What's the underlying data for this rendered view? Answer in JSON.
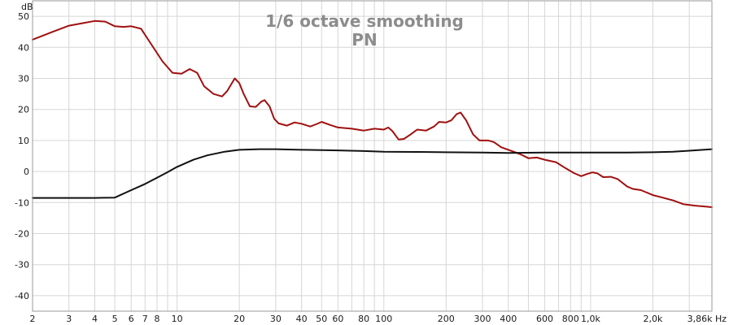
{
  "chart_data": {
    "type": "line",
    "title": "1/6 octave smoothing",
    "subtitle": "PN",
    "ylabel": "dB",
    "x_unit": "Hz",
    "x_scale": "log",
    "xlim": [
      2,
      3860
    ],
    "ylim": [
      -45,
      55
    ],
    "grid": true,
    "y_ticks": [
      {
        "value": 50,
        "label": "50"
      },
      {
        "value": 40,
        "label": "40"
      },
      {
        "value": 30,
        "label": "30"
      },
      {
        "value": 20,
        "label": "20"
      },
      {
        "value": 10,
        "label": "10"
      },
      {
        "value": 0,
        "label": "0"
      },
      {
        "value": -10,
        "label": "-10"
      },
      {
        "value": -20,
        "label": "-20"
      },
      {
        "value": -30,
        "label": "-30"
      },
      {
        "value": -40,
        "label": "-40"
      }
    ],
    "x_ticks": [
      {
        "value": 2,
        "label": "2"
      },
      {
        "value": 3,
        "label": "3"
      },
      {
        "value": 4,
        "label": "4"
      },
      {
        "value": 5,
        "label": "5"
      },
      {
        "value": 6,
        "label": "6"
      },
      {
        "value": 7,
        "label": "7"
      },
      {
        "value": 8,
        "label": "8"
      },
      {
        "value": 10,
        "label": "10"
      },
      {
        "value": 20,
        "label": "20"
      },
      {
        "value": 30,
        "label": "30"
      },
      {
        "value": 40,
        "label": "40"
      },
      {
        "value": 50,
        "label": "50"
      },
      {
        "value": 60,
        "label": "60"
      },
      {
        "value": 80,
        "label": "80"
      },
      {
        "value": 100,
        "label": "100"
      },
      {
        "value": 200,
        "label": "200"
      },
      {
        "value": 300,
        "label": "300"
      },
      {
        "value": 400,
        "label": "400"
      },
      {
        "value": 600,
        "label": "600"
      },
      {
        "value": 800,
        "label": "800"
      },
      {
        "value": 1000,
        "label": "1,0k"
      },
      {
        "value": 2000,
        "label": "2,0k"
      },
      {
        "value": 3860,
        "label": "3,86k Hz"
      }
    ],
    "series": [
      {
        "color": "#a01010",
        "points": [
          [
            2,
            42.5
          ],
          [
            2.5,
            45
          ],
          [
            3,
            47
          ],
          [
            3.5,
            47.8
          ],
          [
            4,
            48.5
          ],
          [
            4.5,
            48.3
          ],
          [
            5,
            46.8
          ],
          [
            5.5,
            46.6
          ],
          [
            6,
            46.8
          ],
          [
            6.7,
            46
          ],
          [
            7.5,
            41
          ],
          [
            8.5,
            35.5
          ],
          [
            9.5,
            31.8
          ],
          [
            10.5,
            31.5
          ],
          [
            11.5,
            33
          ],
          [
            12.5,
            31.8
          ],
          [
            13.5,
            27.5
          ],
          [
            15,
            25
          ],
          [
            16.5,
            24.2
          ],
          [
            17.5,
            26
          ],
          [
            19,
            30
          ],
          [
            20,
            28.5
          ],
          [
            21,
            25
          ],
          [
            22.5,
            21
          ],
          [
            24,
            20.8
          ],
          [
            25.5,
            22.5
          ],
          [
            26.5,
            23
          ],
          [
            28,
            21
          ],
          [
            29.5,
            17
          ],
          [
            31,
            15.5
          ],
          [
            34,
            14.8
          ],
          [
            37,
            15.8
          ],
          [
            40,
            15.4
          ],
          [
            44,
            14.5
          ],
          [
            47,
            15.2
          ],
          [
            50,
            16
          ],
          [
            55,
            15
          ],
          [
            60,
            14.2
          ],
          [
            70,
            13.8
          ],
          [
            80,
            13.2
          ],
          [
            90,
            13.8
          ],
          [
            100,
            13.5
          ],
          [
            105,
            14.2
          ],
          [
            110,
            13
          ],
          [
            118,
            10.3
          ],
          [
            125,
            10.5
          ],
          [
            135,
            12
          ],
          [
            145,
            13.5
          ],
          [
            160,
            13.2
          ],
          [
            175,
            14.5
          ],
          [
            185,
            16
          ],
          [
            200,
            15.8
          ],
          [
            212,
            16.5
          ],
          [
            225,
            18.5
          ],
          [
            235,
            19
          ],
          [
            250,
            16.5
          ],
          [
            270,
            12
          ],
          [
            290,
            10
          ],
          [
            320,
            10
          ],
          [
            340,
            9.5
          ],
          [
            370,
            7.8
          ],
          [
            420,
            6.5
          ],
          [
            460,
            5.5
          ],
          [
            500,
            4.3
          ],
          [
            550,
            4.5
          ],
          [
            600,
            3.8
          ],
          [
            680,
            3
          ],
          [
            760,
            1
          ],
          [
            830,
            -0.5
          ],
          [
            900,
            -1.5
          ],
          [
            960,
            -0.8
          ],
          [
            1020,
            -0.3
          ],
          [
            1080,
            -0.6
          ],
          [
            1150,
            -1.8
          ],
          [
            1250,
            -1.7
          ],
          [
            1350,
            -2.4
          ],
          [
            1500,
            -4.8
          ],
          [
            1600,
            -5.6
          ],
          [
            1750,
            -6
          ],
          [
            2000,
            -7.6
          ],
          [
            2200,
            -8.3
          ],
          [
            2500,
            -9.3
          ],
          [
            2800,
            -10.5
          ],
          [
            3200,
            -11
          ],
          [
            3600,
            -11.3
          ],
          [
            3860,
            -11.5
          ]
        ]
      },
      {
        "color": "#111111",
        "points": [
          [
            2,
            -8.5
          ],
          [
            2.5,
            -8.5
          ],
          [
            3,
            -8.5
          ],
          [
            4,
            -8.5
          ],
          [
            5,
            -8.4
          ],
          [
            6,
            -6
          ],
          [
            7,
            -4
          ],
          [
            8,
            -2
          ],
          [
            9,
            -0.2
          ],
          [
            10,
            1.5
          ],
          [
            12,
            3.8
          ],
          [
            14,
            5.2
          ],
          [
            17,
            6.4
          ],
          [
            20,
            7
          ],
          [
            25,
            7.2
          ],
          [
            30,
            7.2
          ],
          [
            40,
            7
          ],
          [
            50,
            6.9
          ],
          [
            60,
            6.8
          ],
          [
            80,
            6.6
          ],
          [
            100,
            6.4
          ],
          [
            150,
            6.3
          ],
          [
            200,
            6.2
          ],
          [
            300,
            6.1
          ],
          [
            400,
            6
          ],
          [
            600,
            6.1
          ],
          [
            800,
            6.1
          ],
          [
            1000,
            6.1
          ],
          [
            1500,
            6.1
          ],
          [
            2000,
            6.2
          ],
          [
            2500,
            6.4
          ],
          [
            3000,
            6.7
          ],
          [
            3860,
            7.2
          ]
        ]
      }
    ]
  }
}
